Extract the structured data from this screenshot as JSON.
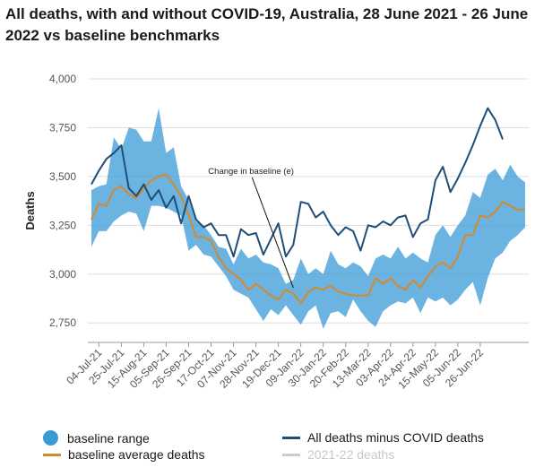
{
  "chart_data": {
    "type": "line",
    "title": "All deaths, with and without COVID-19, Australia, 28 June 2021 - 26 June 2022 vs baseline benchmarks",
    "xlabel": "",
    "ylabel": "Deaths",
    "ylim": [
      2650,
      4000
    ],
    "yticks": [
      2750,
      3000,
      3250,
      3500,
      3750,
      4000
    ],
    "ytick_labels": [
      "2,750",
      "3,000",
      "3,250",
      "3,500",
      "3,750",
      "4,000"
    ],
    "grid": "horizontal",
    "legend_position": "bottom",
    "x_tick_labels": [
      "04-Jul-21",
      "25-Jul-21",
      "15-Aug-21",
      "05-Sep-21",
      "26-Sep-21",
      "17-Oct-21",
      "07-Nov-21",
      "28-Nov-21",
      "19-Dec-21",
      "09-Jan-22",
      "30-Jan-22",
      "20-Feb-22",
      "13-Mar-22",
      "03-Apr-22",
      "24-Apr-22",
      "15-May-22",
      "05-Jun-22",
      "26-Jun-22"
    ],
    "x_tick_every": 3,
    "annotations": [
      {
        "text": "Change in baseline (e)",
        "at_week_index": 27,
        "value": 2930
      }
    ],
    "series": [
      {
        "name": "baseline range",
        "kind": "band",
        "color": "#3a9ad6",
        "upper": [
          3430,
          3450,
          3460,
          3700,
          3640,
          3750,
          3740,
          3680,
          3680,
          3850,
          3620,
          3650,
          3450,
          3380,
          3270,
          3250,
          3200,
          3140,
          3130,
          3050,
          3130,
          3080,
          3100,
          3060,
          3050,
          3030,
          2950,
          2970,
          3080,
          3000,
          3030,
          3000,
          3120,
          3050,
          3030,
          3060,
          3040,
          2990,
          3080,
          3100,
          3080,
          3140,
          3080,
          3110,
          3080,
          3060,
          3200,
          3250,
          3190,
          3250,
          3300,
          3420,
          3390,
          3510,
          3540,
          3480,
          3560,
          3500,
          3470
        ],
        "lower": [
          3140,
          3220,
          3220,
          3270,
          3300,
          3320,
          3310,
          3220,
          3350,
          3350,
          3340,
          3320,
          3300,
          3120,
          3150,
          3100,
          3090,
          3040,
          2990,
          2920,
          2900,
          2880,
          2820,
          2760,
          2820,
          2790,
          2840,
          2790,
          2740,
          2810,
          2840,
          2720,
          2800,
          2810,
          2780,
          2870,
          2810,
          2760,
          2730,
          2810,
          2840,
          2860,
          2850,
          2880,
          2800,
          2880,
          2860,
          2880,
          2840,
          2870,
          2920,
          2960,
          2840,
          2980,
          3080,
          3110,
          3170,
          3200,
          3240
        ]
      },
      {
        "name": "baseline average deaths",
        "kind": "line",
        "color": "#d4892e",
        "values": [
          3280,
          3360,
          3350,
          3430,
          3450,
          3410,
          3390,
          3440,
          3480,
          3500,
          3510,
          3460,
          3400,
          3300,
          3190,
          3190,
          3170,
          3090,
          3030,
          3000,
          2970,
          2920,
          2950,
          2920,
          2890,
          2870,
          2920,
          2900,
          2850,
          2910,
          2930,
          2920,
          2940,
          2910,
          2900,
          2890,
          2890,
          2890,
          2980,
          2950,
          2980,
          2940,
          2920,
          2970,
          2930,
          2990,
          3040,
          3060,
          3030,
          3090,
          3200,
          3200,
          3300,
          3290,
          3320,
          3370,
          3350,
          3330,
          3330
        ]
      },
      {
        "name": "All deaths minus COVID deaths",
        "kind": "line",
        "color": "#1f4e79",
        "values": [
          3460,
          3530,
          3590,
          3620,
          3660,
          3440,
          3400,
          3460,
          3380,
          3430,
          3340,
          3400,
          3260,
          3400,
          3280,
          3240,
          3260,
          3200,
          3200,
          3090,
          3230,
          3200,
          3210,
          3100,
          3180,
          3260,
          3090,
          3150,
          3370,
          3360,
          3290,
          3320,
          3250,
          3200,
          3240,
          3220,
          3120,
          3250,
          3240,
          3270,
          3250,
          3290,
          3300,
          3190,
          3260,
          3280,
          3480,
          3550,
          3420,
          3490,
          3570,
          3660,
          3760,
          3850,
          3790,
          3690,
          null,
          null,
          null
        ]
      },
      {
        "name": "2021-22 deaths",
        "kind": "line",
        "color": "#cccccc",
        "hidden": true,
        "values": []
      }
    ]
  }
}
